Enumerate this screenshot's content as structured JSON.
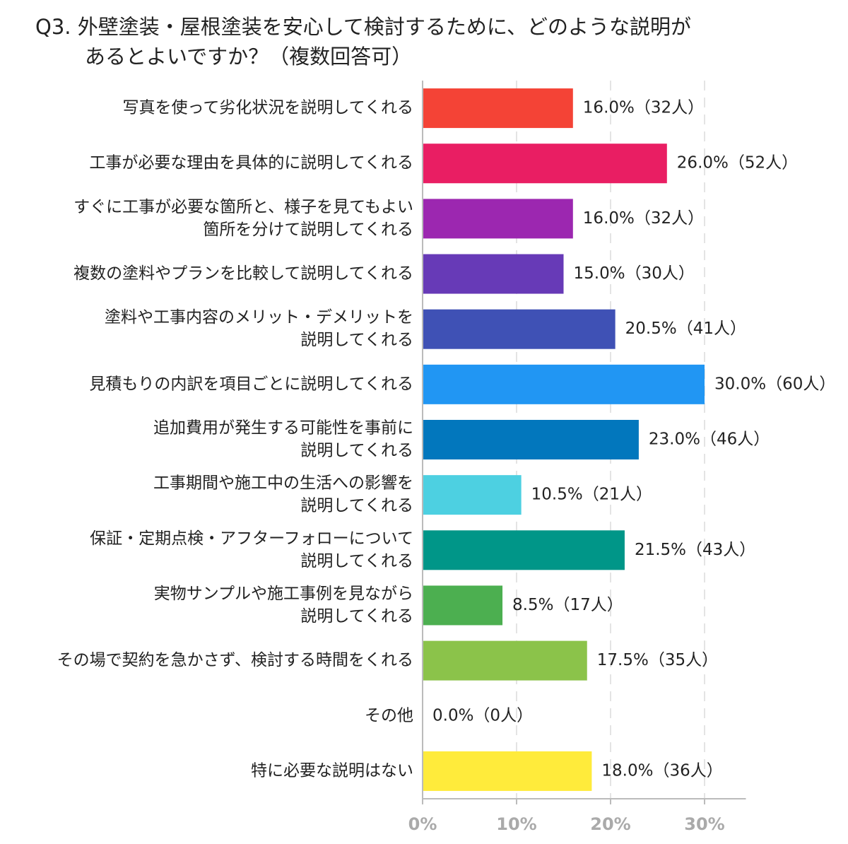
{
  "chart_data": {
    "type": "bar",
    "orientation": "horizontal",
    "title": [
      "Q3. 外壁塗装・屋根塗装を安心して検討するために、どのような説明が",
      "あるとよいですか？（複数回答可）"
    ],
    "categories": [
      [
        "写真を使って劣化状況を説明してくれる"
      ],
      [
        "工事が必要な理由を具体的に説明してくれる"
      ],
      [
        "すぐに工事が必要な箇所と、様子を見てもよい",
        "箇所を分けて説明してくれる"
      ],
      [
        "複数の塗料やプランを比較して説明してくれる"
      ],
      [
        "塗料や工事内容のメリット・デメリットを",
        "説明してくれる"
      ],
      [
        "見積もりの内訳を項目ごとに説明してくれる"
      ],
      [
        "追加費用が発生する可能性を事前に",
        "説明してくれる"
      ],
      [
        "工事期間や施工中の生活への影響を",
        "説明してくれる"
      ],
      [
        "保証・定期点検・アフターフォローについて",
        "説明してくれる"
      ],
      [
        "実物サンプルや施工事例を見ながら",
        "説明してくれる"
      ],
      [
        "その場で契約を急かさず、検討する時間をくれる"
      ],
      [
        "その他"
      ],
      [
        "特に必要な説明はない"
      ]
    ],
    "values": [
      16.0,
      26.0,
      16.0,
      15.0,
      20.5,
      30.0,
      23.0,
      10.5,
      21.5,
      8.5,
      17.5,
      0.0,
      18.0
    ],
    "value_labels": [
      "16.0%（32人）",
      "26.0%（52人）",
      "16.0%（32人）",
      "15.0%（30人）",
      "20.5%（41人）",
      "30.0%（60人）",
      "23.0%（46人）",
      "10.5%（21人）",
      "21.5%（43人）",
      "8.5%（17人）",
      "17.5%（35人）",
      "0.0%（0人）",
      "18.0%（36人）"
    ],
    "colors": [
      "#f44336",
      "#e91e63",
      "#9c27b0",
      "#673ab7",
      "#3f51b5",
      "#2196f3",
      "#0277bd",
      "#4dd0e1",
      "#009688",
      "#4caf50",
      "#8bc34a",
      null,
      "#ffeb3b"
    ],
    "xlim": [
      0,
      34.4
    ],
    "xticks": [
      {
        "value": 0,
        "label": "0%"
      },
      {
        "value": 10,
        "label": "10%"
      },
      {
        "value": 20,
        "label": "20%"
      },
      {
        "value": 30,
        "label": "30%"
      }
    ],
    "grid": true
  }
}
